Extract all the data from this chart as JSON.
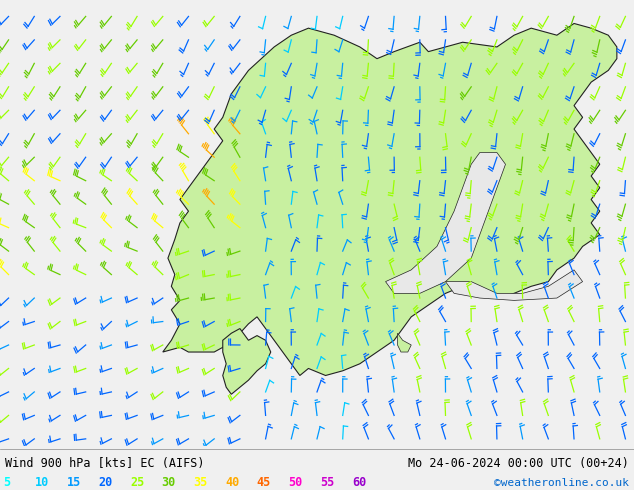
{
  "title_left": "Wind 900 hPa [kts] EC (AIFS)",
  "title_right": "Mo 24-06-2024 00:00 UTC (00+24)",
  "watermark": "©weatheronline.co.uk",
  "legend_values": [
    "5",
    "10",
    "15",
    "20",
    "25",
    "30",
    "35",
    "40",
    "45",
    "50",
    "55",
    "60"
  ],
  "legend_colors": [
    "#00ffff",
    "#00ccff",
    "#0099ff",
    "#0066ff",
    "#99ff00",
    "#66cc00",
    "#ffff00",
    "#ffaa00",
    "#ff6600",
    "#ff00cc",
    "#cc00cc",
    "#9900cc"
  ],
  "bg_color": "#f0f0f0",
  "land_color": "#c8f0a0",
  "sea_color": "#dde8ee",
  "border_color": "#222222",
  "figsize": [
    6.34,
    4.9
  ],
  "dpi": 100,
  "lon_min": -5.0,
  "lon_max": 32.0,
  "lat_min": 53.0,
  "lat_max": 72.0
}
